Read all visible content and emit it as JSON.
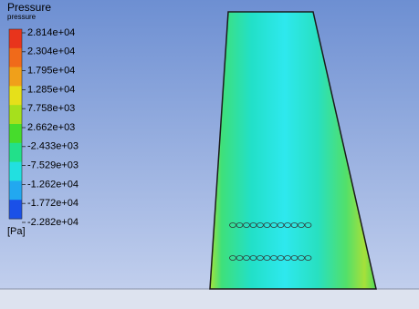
{
  "legend": {
    "title": "Pressure",
    "subtitle": "pressure",
    "labels": [
      "2.814e+04",
      "2.304e+04",
      "1.795e+04",
      "1.285e+04",
      "7.758e+03",
      "2.662e+03",
      "-2.433e+03",
      "-7.529e+03",
      "-1.262e+04",
      "-1.772e+04",
      "-2.282e+04"
    ],
    "unit": "[Pa]"
  }
}
